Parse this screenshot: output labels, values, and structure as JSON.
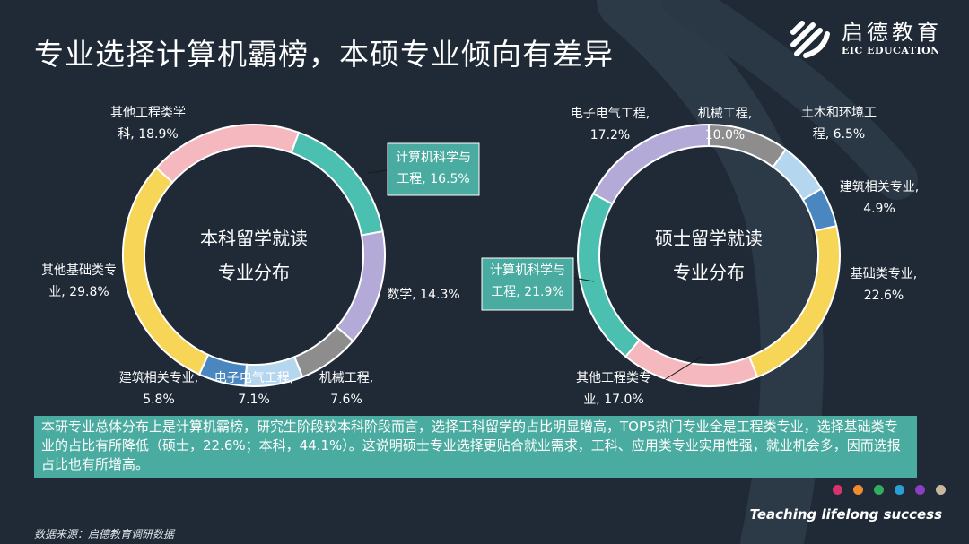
{
  "header": {
    "title": "专业选择计算机霸榜，本硕专业倾向有差异",
    "logo_cn": "启德教育",
    "logo_en": "EIC EDUCATION"
  },
  "chart_data": [
    {
      "type": "pie",
      "donut": true,
      "center_line1": "本科留学就读",
      "center_line2": "专业分布",
      "slices": [
        {
          "label_lines": [
            "计算机科学与",
            "工程, 16.5%"
          ],
          "value": 16.5,
          "color": "#4bbfb0",
          "boxed": true
        },
        {
          "label_lines": [
            "数学, 14.3%"
          ],
          "value": 14.3,
          "color": "#b3aad8"
        },
        {
          "label_lines": [
            "机械工程,",
            "7.6%"
          ],
          "value": 7.6,
          "color": "#8d8d8d"
        },
        {
          "label_lines": [
            "电子电气工程,",
            "7.1%"
          ],
          "value": 7.1,
          "color": "#b4d6ee"
        },
        {
          "label_lines": [
            "建筑相关专业,",
            "5.8%"
          ],
          "value": 5.8,
          "color": "#4a86c0"
        },
        {
          "label_lines": [
            "其他基础类专",
            "业, 29.8%"
          ],
          "value": 29.8,
          "color": "#f7d557"
        },
        {
          "label_lines": [
            "其他工程类学",
            "科, 18.9%"
          ],
          "value": 18.9,
          "color": "#f4b8be"
        }
      ]
    },
    {
      "type": "pie",
      "donut": true,
      "center_line1": "硕士留学就读",
      "center_line2": "专业分布",
      "slices": [
        {
          "label_lines": [
            "机械工程,",
            "10.0%"
          ],
          "value": 10.0,
          "color": "#8d8d8d"
        },
        {
          "label_lines": [
            "土木和环境工",
            "程, 6.5%"
          ],
          "value": 6.5,
          "color": "#b4d6ee"
        },
        {
          "label_lines": [
            "建筑相关专业,",
            "4.9%"
          ],
          "value": 4.9,
          "color": "#4a86c0"
        },
        {
          "label_lines": [
            "基础类专业,",
            "22.6%"
          ],
          "value": 22.6,
          "color": "#f7d557"
        },
        {
          "label_lines": [
            "其他工程类专",
            "业, 17.0%"
          ],
          "value": 17.0,
          "color": "#f4b8be"
        },
        {
          "label_lines": [
            "计算机科学与",
            "工程, 21.9%"
          ],
          "value": 21.9,
          "color": "#4bbfb0",
          "boxed": true
        },
        {
          "label_lines": [
            "电子电气工程,",
            "17.2%"
          ],
          "value": 17.2,
          "color": "#b3aad8"
        }
      ]
    }
  ],
  "note": "本研专业总体分布上是计算机霸榜，研究生阶段较本科阶段而言，选择工科留学的占比明显增高，TOP5热门专业全是工程类专业，选择基础类专业的占比有所降低（硕士，22.6%；本科，44.1%）。这说明硕士专业选择更贴合就业需求，工科、应用类专业实用性强，就业机会多，因而选报占比也有所增高。",
  "footer": {
    "tagline": "Teaching lifelong success",
    "source": "数据来源：启德教育调研数据",
    "dot_colors": [
      "#d6336c",
      "#f08c2e",
      "#2fae5b",
      "#2a9fd6",
      "#8a3fbf",
      "#c9b79c"
    ]
  }
}
